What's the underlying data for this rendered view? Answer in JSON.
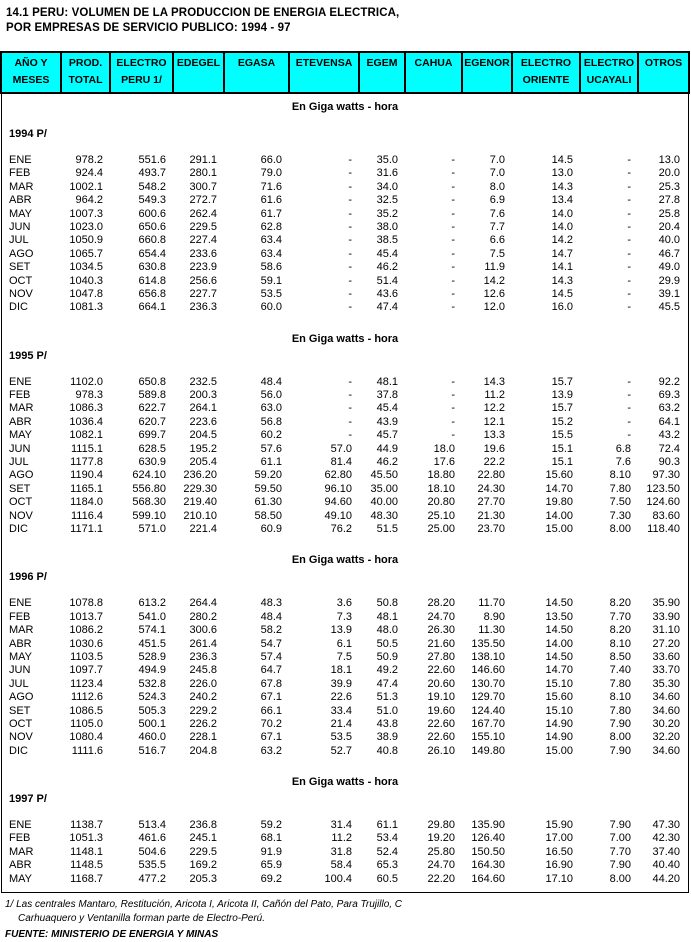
{
  "title": {
    "line1": "14.1  PERU: VOLUMEN DE LA PRODUCCION DE ENERGIA ELECTRICA,",
    "line2": "POR EMPRESAS DE SERVICIO PUBLICO: 1994 - 97"
  },
  "unit_label": "En Giga watts - hora",
  "colors": {
    "header_bg": "#00FFFF",
    "border": "#000000",
    "page_bg": "#FFFFFF"
  },
  "table": {
    "header": [
      [
        "AÑO Y",
        "MESES"
      ],
      [
        "PROD.",
        "TOTAL"
      ],
      [
        "ELECTRO",
        "PERU 1/"
      ],
      [
        "EDEGEL",
        ""
      ],
      [
        "EGASA",
        ""
      ],
      [
        "ETEVENSA",
        ""
      ],
      [
        "EGEM",
        ""
      ],
      [
        "CAHUA",
        ""
      ],
      [
        "EGENOR",
        ""
      ],
      [
        "ELECTRO",
        "ORIENTE"
      ],
      [
        "ELECTRO",
        "UCAYALI"
      ],
      [
        "OTROS",
        ""
      ]
    ],
    "sections": [
      {
        "year": "1994 P/",
        "rows": [
          [
            "ENE",
            "978.2",
            "551.6",
            "291.1",
            "66.0",
            "-",
            "35.0",
            "-",
            "7.0",
            "14.5",
            "-",
            "13.0"
          ],
          [
            "FEB",
            "924.4",
            "493.7",
            "280.1",
            "79.0",
            "-",
            "31.6",
            "-",
            "7.0",
            "13.0",
            "-",
            "20.0"
          ],
          [
            "MAR",
            "1002.1",
            "548.2",
            "300.7",
            "71.6",
            "-",
            "34.0",
            "-",
            "8.0",
            "14.3",
            "-",
            "25.3"
          ],
          [
            "ABR",
            "964.2",
            "549.3",
            "272.7",
            "61.6",
            "-",
            "32.5",
            "-",
            "6.9",
            "13.4",
            "-",
            "27.8"
          ],
          [
            "MAY",
            "1007.3",
            "600.6",
            "262.4",
            "61.7",
            "-",
            "35.2",
            "-",
            "7.6",
            "14.0",
            "-",
            "25.8"
          ],
          [
            "JUN",
            "1023.0",
            "650.6",
            "229.5",
            "62.8",
            "-",
            "38.0",
            "-",
            "7.7",
            "14.0",
            "-",
            "20.4"
          ],
          [
            "JUL",
            "1050.9",
            "660.8",
            "227.4",
            "63.4",
            "-",
            "38.5",
            "-",
            "6.6",
            "14.2",
            "-",
            "40.0"
          ],
          [
            "AGO",
            "1065.7",
            "654.4",
            "233.6",
            "63.4",
            "-",
            "45.4",
            "-",
            "7.5",
            "14.7",
            "-",
            "46.7"
          ],
          [
            "SET",
            "1034.5",
            "630.8",
            "223.9",
            "58.6",
            "-",
            "46.2",
            "-",
            "11.9",
            "14.1",
            "-",
            "49.0"
          ],
          [
            "OCT",
            "1040.3",
            "614.8",
            "256.6",
            "59.1",
            "-",
            "51.4",
            "-",
            "14.2",
            "14.3",
            "-",
            "29.9"
          ],
          [
            "NOV",
            "1047.8",
            "656.8",
            "227.7",
            "53.5",
            "-",
            "43.6",
            "-",
            "12.6",
            "14.5",
            "-",
            "39.1"
          ],
          [
            "DIC",
            "1081.3",
            "664.1",
            "236.3",
            "60.0",
            "-",
            "47.4",
            "-",
            "12.0",
            "16.0",
            "-",
            "45.5"
          ]
        ]
      },
      {
        "year": "1995 P/",
        "rows": [
          [
            "ENE",
            "1102.0",
            "650.8",
            "232.5",
            "48.4",
            "-",
            "48.1",
            "-",
            "14.3",
            "15.7",
            "-",
            "92.2"
          ],
          [
            "FEB",
            "978.3",
            "589.8",
            "200.3",
            "56.0",
            "-",
            "37.8",
            "-",
            "11.2",
            "13.9",
            "-",
            "69.3"
          ],
          [
            "MAR",
            "1086.3",
            "622.7",
            "264.1",
            "63.0",
            "-",
            "45.4",
            "-",
            "12.2",
            "15.7",
            "-",
            "63.2"
          ],
          [
            "ABR",
            "1036.4",
            "620.7",
            "223.6",
            "56.8",
            "-",
            "43.9",
            "-",
            "12.1",
            "15.2",
            "-",
            "64.1"
          ],
          [
            "MAY",
            "1082.1",
            "699.7",
            "204.5",
            "60.2",
            "-",
            "45.7",
            "-",
            "13.3",
            "15.5",
            "-",
            "43.2"
          ],
          [
            "JUN",
            "1115.1",
            "628.5",
            "195.2",
            "57.6",
            "57.0",
            "44.9",
            "18.0",
            "19.6",
            "15.1",
            "6.8",
            "72.4"
          ],
          [
            "JUL",
            "1177.8",
            "630.9",
            "205.4",
            "61.1",
            "81.4",
            "46.2",
            "17.6",
            "22.2",
            "15.1",
            "7.6",
            "90.3"
          ],
          [
            "AGO",
            "1190.4",
            "624.10",
            "236.20",
            "59.20",
            "62.80",
            "45.50",
            "18.80",
            "22.80",
            "15.60",
            "8.10",
            "97.30"
          ],
          [
            "SET",
            "1165.1",
            "556.80",
            "229.30",
            "59.50",
            "96.10",
            "35.00",
            "18.10",
            "24.30",
            "14.70",
            "7.80",
            "123.50"
          ],
          [
            "OCT",
            "1184.0",
            "568.30",
            "219.40",
            "61.30",
            "94.60",
            "40.00",
            "20.80",
            "27.70",
            "19.80",
            "7.50",
            "124.60"
          ],
          [
            "NOV",
            "1116.4",
            "599.10",
            "210.10",
            "58.50",
            "49.10",
            "48.30",
            "25.10",
            "21.30",
            "14.00",
            "7.30",
            "83.60"
          ],
          [
            "DIC",
            "1171.1",
            "571.0",
            "221.4",
            "60.9",
            "76.2",
            "51.5",
            "25.00",
            "23.70",
            "15.00",
            "8.00",
            "118.40"
          ]
        ]
      },
      {
        "year": "1996 P/",
        "rows": [
          [
            "ENE",
            "1078.8",
            "613.2",
            "264.4",
            "48.3",
            "3.6",
            "50.8",
            "28.20",
            "11.70",
            "14.50",
            "8.20",
            "35.90"
          ],
          [
            "FEB",
            "1013.7",
            "541.0",
            "280.2",
            "48.4",
            "7.3",
            "48.1",
            "24.70",
            "8.90",
            "13.50",
            "7.70",
            "33.90"
          ],
          [
            "MAR",
            "1086.2",
            "574.1",
            "300.6",
            "58.2",
            "13.9",
            "48.0",
            "26.30",
            "11.30",
            "14.50",
            "8.20",
            "31.10"
          ],
          [
            "ABR",
            "1030.6",
            "451.5",
            "261.4",
            "54.7",
            "6.1",
            "50.5",
            "21.60",
            "135.50",
            "14.00",
            "8.10",
            "27.20"
          ],
          [
            "MAY",
            "1103.5",
            "528.9",
            "236.3",
            "57.4",
            "7.5",
            "50.9",
            "27.80",
            "138.10",
            "14.50",
            "8.50",
            "33.60"
          ],
          [
            "JUN",
            "1097.7",
            "494.9",
            "245.8",
            "64.7",
            "18.1",
            "49.2",
            "22.60",
            "146.60",
            "14.70",
            "7.40",
            "33.70"
          ],
          [
            "JUL",
            "1123.4",
            "532.8",
            "226.0",
            "67.8",
            "39.9",
            "47.4",
            "20.60",
            "130.70",
            "15.10",
            "7.80",
            "35.30"
          ],
          [
            "AGO",
            "1112.6",
            "524.3",
            "240.2",
            "67.1",
            "22.6",
            "51.3",
            "19.10",
            "129.70",
            "15.60",
            "8.10",
            "34.60"
          ],
          [
            "SET",
            "1086.5",
            "505.3",
            "229.2",
            "66.1",
            "33.4",
            "51.0",
            "19.60",
            "124.40",
            "15.10",
            "7.80",
            "34.60"
          ],
          [
            "OCT",
            "1105.0",
            "500.1",
            "226.2",
            "70.2",
            "21.4",
            "43.8",
            "22.60",
            "167.70",
            "14.90",
            "7.90",
            "30.20"
          ],
          [
            "NOV",
            "1080.4",
            "460.0",
            "228.1",
            "67.1",
            "53.5",
            "38.9",
            "22.60",
            "155.10",
            "14.90",
            "8.00",
            "32.20"
          ],
          [
            "DIC",
            "1111.6",
            "516.7",
            "204.8",
            "63.2",
            "52.7",
            "40.8",
            "26.10",
            "149.80",
            "15.00",
            "7.90",
            "34.60"
          ]
        ]
      },
      {
        "year": "1997 P/",
        "rows": [
          [
            "ENE",
            "1138.7",
            "513.4",
            "236.8",
            "59.2",
            "31.4",
            "61.1",
            "29.80",
            "135.90",
            "15.90",
            "7.90",
            "47.30"
          ],
          [
            "FEB",
            "1051.3",
            "461.6",
            "245.1",
            "68.1",
            "11.2",
            "53.4",
            "19.20",
            "126.40",
            "17.00",
            "7.00",
            "42.30"
          ],
          [
            "MAR",
            "1148.1",
            "504.6",
            "229.5",
            "91.9",
            "31.8",
            "52.4",
            "25.80",
            "150.50",
            "16.50",
            "7.70",
            "37.40"
          ],
          [
            "ABR",
            "1148.5",
            "535.5",
            "169.2",
            "65.9",
            "58.4",
            "65.3",
            "24.70",
            "164.30",
            "16.90",
            "7.90",
            "40.40"
          ],
          [
            "MAY",
            "1168.7",
            "477.2",
            "205.3",
            "69.2",
            "100.4",
            "60.5",
            "22.20",
            "164.60",
            "17.10",
            "8.00",
            "44.20"
          ]
        ]
      }
    ]
  },
  "footnotes": {
    "line1": "1/ Las centrales Mantaro, Restitución, Aricota I, Aricota II, Cañón del Pato, Para Trujillo, C",
    "line2": "Carhuaquero y Ventanilla forman parte de Electro-Perú.",
    "source": "FUENTE: MINISTERIO DE ENERGIA Y MINAS"
  }
}
